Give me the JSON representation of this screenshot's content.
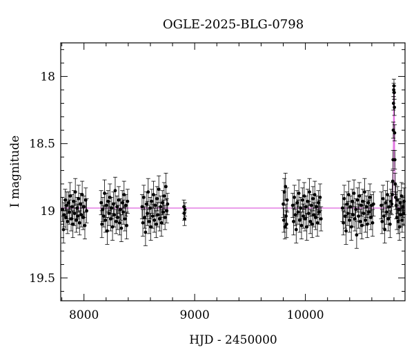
{
  "chart_data": {
    "type": "scatter",
    "title": "OGLE-2025-BLG-0798",
    "xlabel": "HJD - 2450000",
    "ylabel": "I magnitude",
    "xlim": [
      7790,
      10900
    ],
    "ylim": [
      19.67,
      17.75
    ],
    "y_inverted": true,
    "grid": false,
    "x_ticks": [
      8000,
      9000,
      10000
    ],
    "y_ticks": [
      18,
      18.5,
      19,
      19.5
    ],
    "x_tick_labels": [
      "8000",
      "9000",
      "10000"
    ],
    "y_tick_labels": [
      "18",
      "18.5",
      "19",
      "19.5"
    ],
    "model_color": "#e070e0",
    "point_color": "#000000",
    "baseline_mag": 18.98,
    "event_peak": {
      "t": 10800,
      "mag": 18.07
    },
    "observing_seasons": [
      [
        7800,
        8030
      ],
      [
        8150,
        8400
      ],
      [
        8520,
        8760
      ],
      [
        8900,
        8915
      ],
      [
        9800,
        9840
      ],
      [
        9880,
        10150
      ],
      [
        10330,
        10620
      ],
      [
        10680,
        10900
      ]
    ],
    "series": [
      {
        "type": "points_with_errorbars",
        "points": [
          [
            7805,
            18.99,
            0.09
          ],
          [
            7815,
            19.14,
            0.1
          ],
          [
            7820,
            19.03,
            0.09
          ],
          [
            7830,
            18.92,
            0.08
          ],
          [
            7838,
            19.05,
            0.09
          ],
          [
            7845,
            18.96,
            0.1
          ],
          [
            7852,
            19.08,
            0.09
          ],
          [
            7860,
            18.94,
            0.08
          ],
          [
            7868,
            19.01,
            0.09
          ],
          [
            7875,
            18.89,
            0.1
          ],
          [
            7884,
            19.06,
            0.09
          ],
          [
            7892,
            18.97,
            0.09
          ],
          [
            7900,
            19.1,
            0.1
          ],
          [
            7908,
            18.93,
            0.08
          ],
          [
            7915,
            19.02,
            0.09
          ],
          [
            7922,
            18.86,
            0.1
          ],
          [
            7930,
            19.07,
            0.09
          ],
          [
            7938,
            18.98,
            0.08
          ],
          [
            7945,
            19.04,
            0.09
          ],
          [
            7952,
            18.91,
            0.1
          ],
          [
            7960,
            19.09,
            0.09
          ],
          [
            7968,
            18.95,
            0.08
          ],
          [
            7976,
            19.03,
            0.09
          ],
          [
            7984,
            18.88,
            0.1
          ],
          [
            7992,
            19.05,
            0.09
          ],
          [
            8000,
            18.97,
            0.08
          ],
          [
            8008,
            19.11,
            0.1
          ],
          [
            8016,
            18.92,
            0.09
          ],
          [
            8024,
            19.0,
            0.09
          ],
          [
            8155,
            18.94,
            0.09
          ],
          [
            8162,
            19.1,
            0.1
          ],
          [
            8170,
            18.99,
            0.09
          ],
          [
            8178,
            19.04,
            0.08
          ],
          [
            8186,
            18.87,
            0.1
          ],
          [
            8194,
            19.07,
            0.09
          ],
          [
            8202,
            18.96,
            0.09
          ],
          [
            8210,
            19.15,
            0.1
          ],
          [
            8218,
            18.93,
            0.08
          ],
          [
            8226,
            19.02,
            0.09
          ],
          [
            8234,
            18.9,
            0.1
          ],
          [
            8242,
            19.06,
            0.09
          ],
          [
            8250,
            18.98,
            0.08
          ],
          [
            8258,
            19.12,
            0.1
          ],
          [
            8266,
            18.95,
            0.09
          ],
          [
            8274,
            19.03,
            0.09
          ],
          [
            8282,
            18.85,
            0.1
          ],
          [
            8290,
            19.08,
            0.09
          ],
          [
            8298,
            18.97,
            0.08
          ],
          [
            8306,
            19.05,
            0.09
          ],
          [
            8314,
            18.92,
            0.1
          ],
          [
            8322,
            19.09,
            0.09
          ],
          [
            8330,
            18.99,
            0.08
          ],
          [
            8338,
            19.13,
            0.1
          ],
          [
            8346,
            18.94,
            0.09
          ],
          [
            8354,
            19.01,
            0.09
          ],
          [
            8362,
            18.88,
            0.1
          ],
          [
            8370,
            19.06,
            0.09
          ],
          [
            8378,
            18.96,
            0.08
          ],
          [
            8386,
            19.11,
            0.1
          ],
          [
            8394,
            18.93,
            0.09
          ],
          [
            8525,
            18.97,
            0.09
          ],
          [
            8532,
            19.09,
            0.1
          ],
          [
            8540,
            18.9,
            0.09
          ],
          [
            8548,
            19.05,
            0.08
          ],
          [
            8556,
            19.16,
            0.1
          ],
          [
            8564,
            18.95,
            0.09
          ],
          [
            8572,
            19.02,
            0.09
          ],
          [
            8580,
            18.86,
            0.1
          ],
          [
            8588,
            19.08,
            0.09
          ],
          [
            8596,
            18.98,
            0.08
          ],
          [
            8604,
            19.12,
            0.1
          ],
          [
            8612,
            18.93,
            0.09
          ],
          [
            8620,
            19.04,
            0.09
          ],
          [
            8628,
            18.88,
            0.1
          ],
          [
            8636,
            19.07,
            0.09
          ],
          [
            8644,
            18.96,
            0.08
          ],
          [
            8652,
            19.1,
            0.1
          ],
          [
            8660,
            18.91,
            0.09
          ],
          [
            8668,
            19.03,
            0.09
          ],
          [
            8676,
            18.84,
            0.1
          ],
          [
            8684,
            19.06,
            0.09
          ],
          [
            8692,
            18.97,
            0.08
          ],
          [
            8700,
            19.09,
            0.1
          ],
          [
            8708,
            18.94,
            0.09
          ],
          [
            8716,
            19.01,
            0.09
          ],
          [
            8724,
            18.89,
            0.1
          ],
          [
            8732,
            19.05,
            0.09
          ],
          [
            8740,
            18.82,
            0.1
          ],
          [
            8748,
            19.0,
            0.09
          ],
          [
            8755,
            18.95,
            0.08
          ],
          [
            8903,
            18.97,
            0.05
          ],
          [
            8906,
            19.02,
            0.05
          ],
          [
            8909,
            19.06,
            0.05
          ],
          [
            8912,
            18.99,
            0.05
          ],
          [
            9800,
            18.95,
            0.1
          ],
          [
            9805,
            19.07,
            0.09
          ],
          [
            9810,
            18.86,
            0.1
          ],
          [
            9815,
            19.12,
            0.09
          ],
          [
            9820,
            18.82,
            0.1
          ],
          [
            9825,
            19.04,
            0.09
          ],
          [
            9830,
            19.1,
            0.1
          ],
          [
            9835,
            18.92,
            0.09
          ],
          [
            9885,
            18.96,
            0.09
          ],
          [
            9893,
            19.08,
            0.1
          ],
          [
            9901,
            18.9,
            0.09
          ],
          [
            9909,
            19.03,
            0.08
          ],
          [
            9917,
            19.14,
            0.1
          ],
          [
            9925,
            18.94,
            0.09
          ],
          [
            9933,
            19.01,
            0.09
          ],
          [
            9941,
            18.87,
            0.1
          ],
          [
            9949,
            19.07,
            0.09
          ],
          [
            9957,
            18.98,
            0.08
          ],
          [
            9965,
            19.11,
            0.1
          ],
          [
            9973,
            18.92,
            0.09
          ],
          [
            9981,
            19.04,
            0.09
          ],
          [
            9989,
            18.89,
            0.1
          ],
          [
            9997,
            19.06,
            0.09
          ],
          [
            10005,
            18.97,
            0.08
          ],
          [
            10013,
            19.12,
            0.1
          ],
          [
            10021,
            18.93,
            0.09
          ],
          [
            10029,
            19.02,
            0.09
          ],
          [
            10037,
            18.86,
            0.1
          ],
          [
            10045,
            19.08,
            0.09
          ],
          [
            10053,
            18.96,
            0.08
          ],
          [
            10061,
            19.1,
            0.1
          ],
          [
            10069,
            18.91,
            0.09
          ],
          [
            10077,
            19.03,
            0.09
          ],
          [
            10085,
            18.88,
            0.1
          ],
          [
            10093,
            19.05,
            0.09
          ],
          [
            10101,
            18.97,
            0.08
          ],
          [
            10109,
            19.09,
            0.1
          ],
          [
            10117,
            18.94,
            0.09
          ],
          [
            10125,
            19.01,
            0.09
          ],
          [
            10133,
            18.9,
            0.1
          ],
          [
            10141,
            19.06,
            0.09
          ],
          [
            10335,
            18.98,
            0.1
          ],
          [
            10343,
            19.09,
            0.09
          ],
          [
            10351,
            18.91,
            0.1
          ],
          [
            10359,
            19.04,
            0.09
          ],
          [
            10367,
            19.15,
            0.1
          ],
          [
            10375,
            18.95,
            0.09
          ],
          [
            10383,
            19.02,
            0.09
          ],
          [
            10391,
            18.88,
            0.1
          ],
          [
            10399,
            19.07,
            0.09
          ],
          [
            10407,
            18.97,
            0.08
          ],
          [
            10415,
            19.12,
            0.1
          ],
          [
            10423,
            18.93,
            0.09
          ],
          [
            10431,
            19.03,
            0.09
          ],
          [
            10439,
            18.87,
            0.1
          ],
          [
            10447,
            19.06,
            0.09
          ],
          [
            10455,
            18.99,
            0.08
          ],
          [
            10463,
            19.18,
            0.1
          ],
          [
            10471,
            18.92,
            0.09
          ],
          [
            10479,
            19.04,
            0.09
          ],
          [
            10487,
            18.89,
            0.1
          ],
          [
            10495,
            19.08,
            0.09
          ],
          [
            10503,
            18.96,
            0.08
          ],
          [
            10511,
            19.11,
            0.1
          ],
          [
            10519,
            18.93,
            0.09
          ],
          [
            10527,
            19.02,
            0.09
          ],
          [
            10535,
            18.86,
            0.1
          ],
          [
            10543,
            19.07,
            0.09
          ],
          [
            10551,
            18.97,
            0.08
          ],
          [
            10559,
            19.1,
            0.1
          ],
          [
            10567,
            18.94,
            0.09
          ],
          [
            10575,
            19.01,
            0.09
          ],
          [
            10583,
            18.9,
            0.1
          ],
          [
            10591,
            19.05,
            0.09
          ],
          [
            10599,
            18.96,
            0.08
          ],
          [
            10607,
            19.09,
            0.1
          ],
          [
            10615,
            18.95,
            0.09
          ],
          [
            10685,
            18.96,
            0.1
          ],
          [
            10693,
            19.08,
            0.09
          ],
          [
            10701,
            18.91,
            0.1
          ],
          [
            10709,
            19.04,
            0.09
          ],
          [
            10717,
            19.14,
            0.1
          ],
          [
            10725,
            18.94,
            0.09
          ],
          [
            10733,
            19.01,
            0.09
          ],
          [
            10741,
            18.88,
            0.1
          ],
          [
            10749,
            19.06,
            0.09
          ],
          [
            10757,
            18.97,
            0.08
          ],
          [
            10765,
            19.1,
            0.1
          ],
          [
            10773,
            18.93,
            0.09
          ],
          [
            10780,
            18.95,
            0.08
          ],
          [
            10785,
            18.88,
            0.09
          ],
          [
            10789,
            18.78,
            0.08
          ],
          [
            10792,
            18.62,
            0.07
          ],
          [
            10794,
            18.4,
            0.06
          ],
          [
            10796,
            18.2,
            0.05
          ],
          [
            10798,
            18.1,
            0.05
          ],
          [
            10800,
            18.07,
            0.05
          ],
          [
            10802,
            18.12,
            0.05
          ],
          [
            10804,
            18.23,
            0.06
          ],
          [
            10806,
            18.42,
            0.06
          ],
          [
            10808,
            18.62,
            0.07
          ],
          [
            10811,
            18.8,
            0.08
          ],
          [
            10815,
            18.9,
            0.09
          ],
          [
            10820,
            18.96,
            0.1
          ],
          [
            10826,
            19.05,
            0.09
          ],
          [
            10832,
            18.92,
            0.1
          ],
          [
            10838,
            19.08,
            0.09
          ],
          [
            10844,
            18.99,
            0.08
          ],
          [
            10850,
            19.12,
            0.1
          ],
          [
            10856,
            18.94,
            0.09
          ],
          [
            10862,
            19.03,
            0.09
          ],
          [
            10868,
            18.89,
            0.1
          ],
          [
            10874,
            19.07,
            0.09
          ],
          [
            10880,
            18.97,
            0.08
          ],
          [
            10886,
            19.02,
            0.09
          ],
          [
            10892,
            18.93,
            0.1
          ]
        ]
      }
    ]
  }
}
